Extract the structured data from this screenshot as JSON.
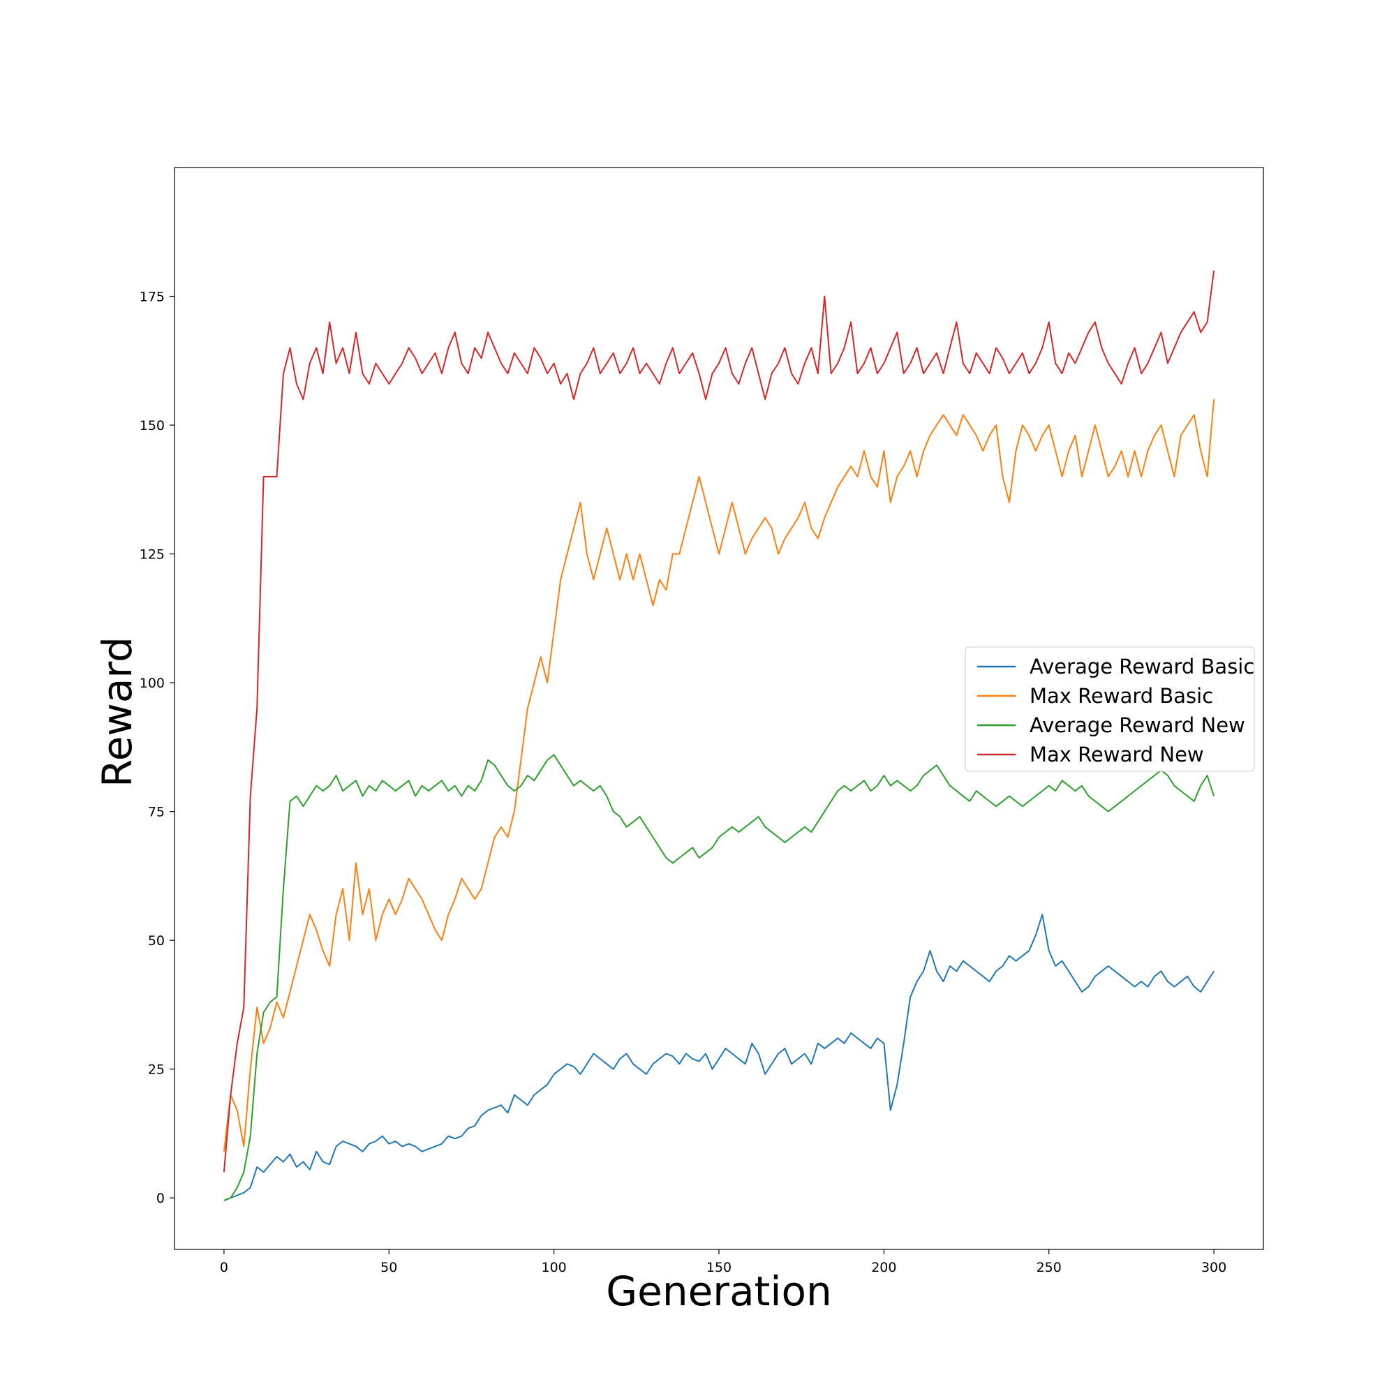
{
  "chart_data": {
    "type": "line",
    "title": "",
    "xlabel": "Generation",
    "ylabel": "Reward",
    "xlim": [
      -15,
      315
    ],
    "ylim": [
      -10,
      200
    ],
    "xticks": [
      0,
      50,
      100,
      150,
      200,
      250,
      300
    ],
    "yticks": [
      0,
      25,
      50,
      75,
      100,
      125,
      150,
      175
    ],
    "grid": false,
    "legend_position": "center-right",
    "series": [
      {
        "name": "Average Reward Basic",
        "color": "#1f77b4",
        "x": [
          0,
          2,
          4,
          6,
          8,
          10,
          12,
          14,
          16,
          18,
          20,
          22,
          24,
          26,
          28,
          30,
          32,
          34,
          36,
          38,
          40,
          42,
          44,
          46,
          48,
          50,
          52,
          54,
          56,
          58,
          60,
          62,
          64,
          66,
          68,
          70,
          72,
          74,
          76,
          78,
          80,
          82,
          84,
          86,
          88,
          90,
          92,
          94,
          96,
          98,
          100,
          102,
          104,
          106,
          108,
          110,
          112,
          114,
          116,
          118,
          120,
          122,
          124,
          126,
          128,
          130,
          132,
          134,
          136,
          138,
          140,
          142,
          144,
          146,
          148,
          150,
          152,
          154,
          156,
          158,
          160,
          162,
          164,
          166,
          168,
          170,
          172,
          174,
          176,
          178,
          180,
          182,
          184,
          186,
          188,
          190,
          192,
          194,
          196,
          198,
          200,
          202,
          204,
          206,
          208,
          210,
          212,
          214,
          216,
          218,
          220,
          222,
          224,
          226,
          228,
          230,
          232,
          234,
          236,
          238,
          240,
          242,
          244,
          246,
          248,
          250,
          252,
          254,
          256,
          258,
          260,
          262,
          264,
          266,
          268,
          270,
          272,
          274,
          276,
          278,
          280,
          282,
          284,
          286,
          288,
          290,
          292,
          294,
          296,
          298,
          300
        ],
        "values": [
          -0.5,
          0.0,
          0.5,
          1.0,
          2.0,
          6.0,
          5.0,
          6.5,
          8.0,
          7.0,
          8.5,
          6.0,
          7.0,
          5.5,
          9.0,
          7.0,
          6.5,
          10.0,
          11.0,
          10.5,
          10.0,
          9.0,
          10.5,
          11.0,
          12.0,
          10.5,
          11.0,
          10.0,
          10.5,
          10.0,
          9.0,
          9.5,
          10.0,
          10.5,
          12.0,
          11.5,
          12.0,
          13.5,
          14.0,
          16.0,
          17.0,
          17.5,
          18.0,
          16.5,
          20.0,
          19.0,
          18.0,
          20.0,
          21.0,
          22.0,
          24.0,
          25.0,
          26.0,
          25.5,
          24.0,
          26.0,
          28.0,
          27.0,
          26.0,
          25.0,
          27.0,
          28.0,
          26.0,
          25.0,
          24.0,
          26.0,
          27.0,
          28.0,
          27.5,
          26.0,
          28.0,
          27.0,
          26.5,
          28.0,
          25.0,
          27.0,
          29.0,
          28.0,
          27.0,
          26.0,
          30.0,
          28.0,
          24.0,
          26.0,
          28.0,
          29.0,
          26.0,
          27.0,
          28.0,
          26.0,
          30.0,
          29.0,
          30.0,
          31.0,
          30.0,
          32.0,
          31.0,
          30.0,
          29.0,
          31.0,
          30.0,
          17.0,
          22.0,
          30.0,
          39.0,
          42.0,
          44.0,
          48.0,
          44.0,
          42.0,
          45.0,
          44.0,
          46.0,
          45.0,
          44.0,
          43.0,
          42.0,
          44.0,
          45.0,
          47.0,
          46.0,
          47.0,
          48.0,
          51.0,
          55.0,
          48.0,
          45.0,
          46.0,
          44.0,
          42.0,
          40.0,
          41.0,
          43.0,
          44.0,
          45.0,
          44.0,
          43.0,
          42.0,
          41.0,
          42.0,
          41.0,
          43.0,
          44.0,
          42.0,
          41.0,
          42.0,
          43.0,
          41.0,
          40.0,
          42.0,
          44.0
        ]
      },
      {
        "name": "Max Reward Basic",
        "color": "#ff7f0e",
        "x": [
          0,
          2,
          4,
          6,
          8,
          10,
          12,
          14,
          16,
          18,
          20,
          22,
          24,
          26,
          28,
          30,
          32,
          34,
          36,
          38,
          40,
          42,
          44,
          46,
          48,
          50,
          52,
          54,
          56,
          58,
          60,
          62,
          64,
          66,
          68,
          70,
          72,
          74,
          76,
          78,
          80,
          82,
          84,
          86,
          88,
          90,
          92,
          94,
          96,
          98,
          100,
          102,
          104,
          106,
          108,
          110,
          112,
          114,
          116,
          118,
          120,
          122,
          124,
          126,
          128,
          130,
          132,
          134,
          136,
          138,
          140,
          142,
          144,
          146,
          148,
          150,
          152,
          154,
          156,
          158,
          160,
          162,
          164,
          166,
          168,
          170,
          172,
          174,
          176,
          178,
          180,
          182,
          184,
          186,
          188,
          190,
          192,
          194,
          196,
          198,
          200,
          202,
          204,
          206,
          208,
          210,
          212,
          214,
          216,
          218,
          220,
          222,
          224,
          226,
          228,
          230,
          232,
          234,
          236,
          238,
          240,
          242,
          244,
          246,
          248,
          250,
          252,
          254,
          256,
          258,
          260,
          262,
          264,
          266,
          268,
          270,
          272,
          274,
          276,
          278,
          280,
          282,
          284,
          286,
          288,
          290,
          292,
          294,
          296,
          298,
          300
        ],
        "values": [
          9,
          20,
          17,
          10,
          25,
          37,
          30,
          33,
          38,
          35,
          40,
          45,
          50,
          55,
          52,
          48,
          45,
          55,
          60,
          50,
          65,
          55,
          60,
          50,
          55,
          58,
          55,
          58,
          62,
          60,
          58,
          55,
          52,
          50,
          55,
          58,
          62,
          60,
          58,
          60,
          65,
          70,
          72,
          70,
          75,
          85,
          95,
          100,
          105,
          100,
          110,
          120,
          125,
          130,
          135,
          125,
          120,
          125,
          130,
          125,
          120,
          125,
          120,
          125,
          120,
          115,
          120,
          118,
          125,
          125,
          130,
          135,
          140,
          135,
          130,
          125,
          130,
          135,
          130,
          125,
          128,
          130,
          132,
          130,
          125,
          128,
          130,
          132,
          135,
          130,
          128,
          132,
          135,
          138,
          140,
          142,
          140,
          145,
          140,
          138,
          145,
          135,
          140,
          142,
          145,
          140,
          145,
          148,
          150,
          152,
          150,
          148,
          152,
          150,
          148,
          145,
          148,
          150,
          140,
          135,
          145,
          150,
          148,
          145,
          148,
          150,
          145,
          140,
          145,
          148,
          140,
          145,
          150,
          145,
          140,
          142,
          145,
          140,
          145,
          140,
          145,
          148,
          150,
          145,
          140,
          148,
          150,
          152,
          145,
          140,
          155
        ]
      },
      {
        "name": "Average Reward New",
        "color": "#2ca02c",
        "x": [
          0,
          2,
          4,
          6,
          8,
          10,
          12,
          14,
          16,
          18,
          20,
          22,
          24,
          26,
          28,
          30,
          32,
          34,
          36,
          38,
          40,
          42,
          44,
          46,
          48,
          50,
          52,
          54,
          56,
          58,
          60,
          62,
          64,
          66,
          68,
          70,
          72,
          74,
          76,
          78,
          80,
          82,
          84,
          86,
          88,
          90,
          92,
          94,
          96,
          98,
          100,
          102,
          104,
          106,
          108,
          110,
          112,
          114,
          116,
          118,
          120,
          122,
          124,
          126,
          128,
          130,
          132,
          134,
          136,
          138,
          140,
          142,
          144,
          146,
          148,
          150,
          152,
          154,
          156,
          158,
          160,
          162,
          164,
          166,
          168,
          170,
          172,
          174,
          176,
          178,
          180,
          182,
          184,
          186,
          188,
          190,
          192,
          194,
          196,
          198,
          200,
          202,
          204,
          206,
          208,
          210,
          212,
          214,
          216,
          218,
          220,
          222,
          224,
          226,
          228,
          230,
          232,
          234,
          236,
          238,
          240,
          242,
          244,
          246,
          248,
          250,
          252,
          254,
          256,
          258,
          260,
          262,
          264,
          266,
          268,
          270,
          272,
          274,
          276,
          278,
          280,
          282,
          284,
          286,
          288,
          290,
          292,
          294,
          296,
          298,
          300
        ],
        "values": [
          -0.5,
          0.0,
          2.0,
          5.0,
          12.0,
          28.0,
          36.0,
          38.0,
          39.0,
          60.0,
          77.0,
          78.0,
          76.0,
          78.0,
          80.0,
          79.0,
          80.0,
          82.0,
          79.0,
          80.0,
          81.0,
          78.0,
          80.0,
          79.0,
          81.0,
          80.0,
          79.0,
          80.0,
          81.0,
          78.0,
          80.0,
          79.0,
          80.0,
          81.0,
          79.0,
          80.0,
          78.0,
          80.0,
          79.0,
          81.0,
          85.0,
          84.0,
          82.0,
          80.0,
          79.0,
          80.0,
          82.0,
          81.0,
          83.0,
          85.0,
          86.0,
          84.0,
          82.0,
          80.0,
          81.0,
          80.0,
          79.0,
          80.0,
          78.0,
          75.0,
          74.0,
          72.0,
          73.0,
          74.0,
          72.0,
          70.0,
          68.0,
          66.0,
          65.0,
          66.0,
          67.0,
          68.0,
          66.0,
          67.0,
          68.0,
          70.0,
          71.0,
          72.0,
          71.0,
          72.0,
          73.0,
          74.0,
          72.0,
          71.0,
          70.0,
          69.0,
          70.0,
          71.0,
          72.0,
          71.0,
          73.0,
          75.0,
          77.0,
          79.0,
          80.0,
          79.0,
          80.0,
          81.0,
          79.0,
          80.0,
          82.0,
          80.0,
          81.0,
          80.0,
          79.0,
          80.0,
          82.0,
          83.0,
          84.0,
          82.0,
          80.0,
          79.0,
          78.0,
          77.0,
          79.0,
          78.0,
          77.0,
          76.0,
          77.0,
          78.0,
          77.0,
          76.0,
          77.0,
          78.0,
          79.0,
          80.0,
          79.0,
          81.0,
          80.0,
          79.0,
          80.0,
          78.0,
          77.0,
          76.0,
          75.0,
          76.0,
          77.0,
          78.0,
          79.0,
          80.0,
          81.0,
          82.0,
          83.0,
          82.0,
          80.0,
          79.0,
          78.0,
          77.0,
          80.0,
          82.0,
          78.0
        ]
      },
      {
        "name": "Max Reward New",
        "color": "#d62728",
        "x": [
          0,
          2,
          4,
          6,
          8,
          10,
          12,
          14,
          16,
          18,
          20,
          22,
          24,
          26,
          28,
          30,
          32,
          34,
          36,
          38,
          40,
          42,
          44,
          46,
          48,
          50,
          52,
          54,
          56,
          58,
          60,
          62,
          64,
          66,
          68,
          70,
          72,
          74,
          76,
          78,
          80,
          82,
          84,
          86,
          88,
          90,
          92,
          94,
          96,
          98,
          100,
          102,
          104,
          106,
          108,
          110,
          112,
          114,
          116,
          118,
          120,
          122,
          124,
          126,
          128,
          130,
          132,
          134,
          136,
          138,
          140,
          142,
          144,
          146,
          148,
          150,
          152,
          154,
          156,
          158,
          160,
          162,
          164,
          166,
          168,
          170,
          172,
          174,
          176,
          178,
          180,
          182,
          184,
          186,
          188,
          190,
          192,
          194,
          196,
          198,
          200,
          202,
          204,
          206,
          208,
          210,
          212,
          214,
          216,
          218,
          220,
          222,
          224,
          226,
          228,
          230,
          232,
          234,
          236,
          238,
          240,
          242,
          244,
          246,
          248,
          250,
          252,
          254,
          256,
          258,
          260,
          262,
          264,
          266,
          268,
          270,
          272,
          274,
          276,
          278,
          280,
          282,
          284,
          286,
          288,
          290,
          292,
          294,
          296,
          298,
          300
        ],
        "values": [
          5,
          20,
          30,
          37,
          78,
          95,
          140,
          140,
          140,
          160,
          165,
          158,
          155,
          162,
          165,
          160,
          170,
          162,
          165,
          160,
          168,
          160,
          158,
          162,
          160,
          158,
          160,
          162,
          165,
          163,
          160,
          162,
          164,
          160,
          165,
          168,
          162,
          160,
          165,
          163,
          168,
          165,
          162,
          160,
          164,
          162,
          160,
          165,
          163,
          160,
          162,
          158,
          160,
          155,
          160,
          162,
          165,
          160,
          162,
          164,
          160,
          162,
          165,
          160,
          162,
          160,
          158,
          162,
          165,
          160,
          162,
          164,
          160,
          155,
          160,
          162,
          165,
          160,
          158,
          162,
          165,
          160,
          155,
          160,
          162,
          165,
          160,
          158,
          162,
          165,
          160,
          175,
          160,
          162,
          165,
          170,
          160,
          162,
          165,
          160,
          162,
          165,
          168,
          160,
          162,
          165,
          160,
          162,
          164,
          160,
          165,
          170,
          162,
          160,
          164,
          162,
          160,
          165,
          163,
          160,
          162,
          164,
          160,
          162,
          165,
          170,
          162,
          160,
          164,
          162,
          165,
          168,
          170,
          165,
          162,
          160,
          158,
          162,
          165,
          160,
          162,
          165,
          168,
          162,
          165,
          168,
          170,
          172,
          168,
          170,
          180
        ]
      }
    ]
  }
}
